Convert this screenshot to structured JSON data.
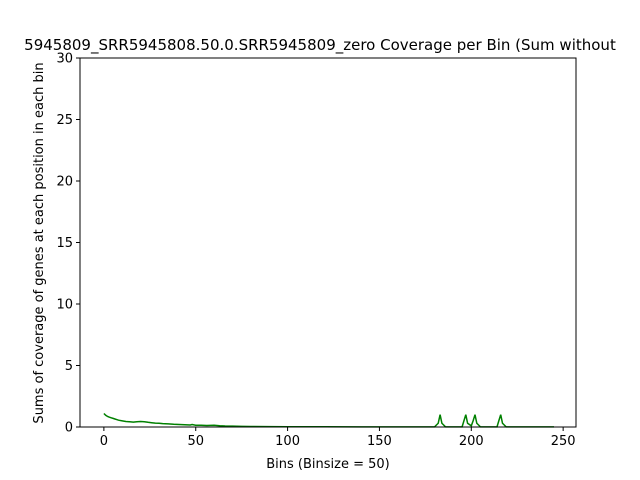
{
  "chart_data": {
    "type": "line",
    "title": "5945809_SRR5945808.50.0.SRR5945809_zero Coverage per Bin (Sum without",
    "xlabel": "Bins (Binsize = 50)",
    "ylabel": "Sums of coverage of genes at each position in each bin",
    "xlim": [
      -13,
      257
    ],
    "ylim": [
      0,
      30
    ],
    "xticks": [
      0,
      50,
      100,
      150,
      200,
      250
    ],
    "yticks": [
      0,
      5,
      10,
      15,
      20,
      25,
      30
    ],
    "grid": false,
    "legend": "none",
    "series_color": "#008000",
    "series": [
      {
        "x": [
          0,
          1,
          2,
          3,
          4,
          5,
          6,
          7,
          8,
          10,
          12,
          14,
          16,
          18,
          20,
          22,
          24,
          26,
          28,
          30,
          32,
          35,
          38,
          41,
          44,
          47,
          48,
          50,
          53,
          56,
          60,
          63,
          66,
          70,
          75,
          80,
          90,
          100,
          120,
          140,
          160,
          180,
          182,
          183,
          184,
          186,
          195,
          196,
          197,
          198,
          200,
          201,
          202,
          203,
          205,
          214,
          215,
          216,
          217,
          219,
          230,
          245
        ],
        "y": [
          1.1,
          0.95,
          0.85,
          0.8,
          0.75,
          0.7,
          0.65,
          0.6,
          0.55,
          0.5,
          0.45,
          0.42,
          0.4,
          0.43,
          0.45,
          0.42,
          0.38,
          0.35,
          0.32,
          0.3,
          0.28,
          0.25,
          0.22,
          0.2,
          0.18,
          0.16,
          0.2,
          0.15,
          0.14,
          0.12,
          0.15,
          0.1,
          0.08,
          0.07,
          0.05,
          0.04,
          0.03,
          0.02,
          0.02,
          0.01,
          0.01,
          0.01,
          0.3,
          1.0,
          0.3,
          0.01,
          0.01,
          0.5,
          1.0,
          0.3,
          0.1,
          0.5,
          1.0,
          0.3,
          0.01,
          0.01,
          0.5,
          1.0,
          0.3,
          0.01,
          0.01,
          0.01
        ]
      }
    ]
  }
}
